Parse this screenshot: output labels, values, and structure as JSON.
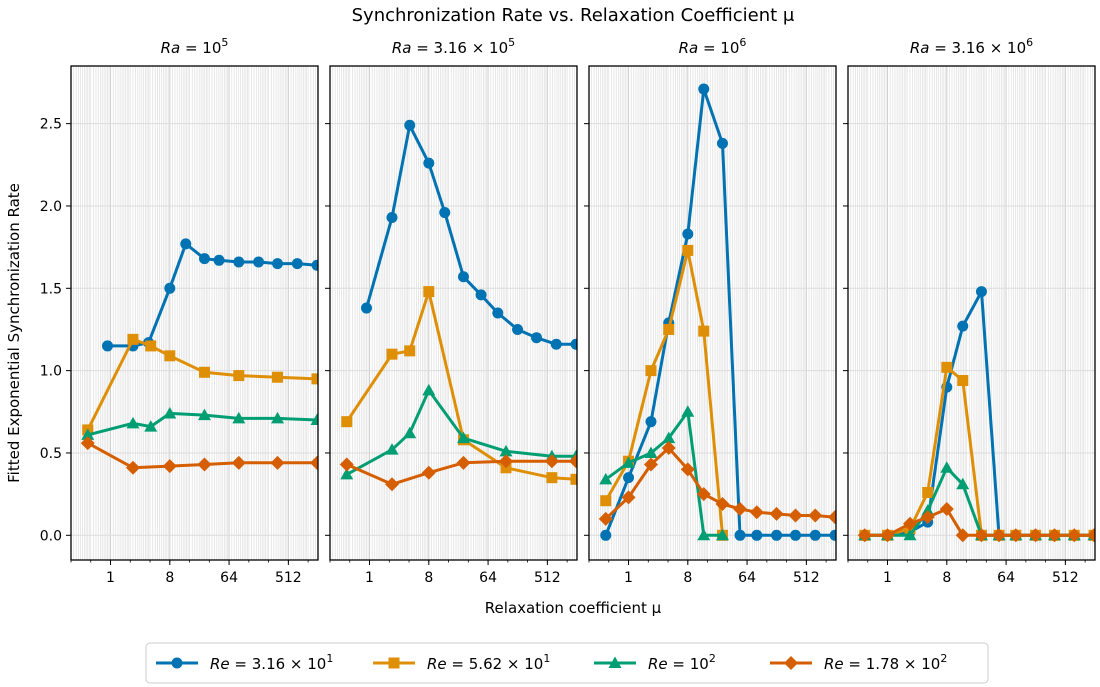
{
  "figure": {
    "suptitle": "Synchronization Rate vs. Relaxation Coefficient μ",
    "xlabel": "Relaxation coefficient μ",
    "ylabel": "Fitted Exponential Synchronization Rate"
  },
  "chart_data": {
    "type": "line",
    "x_scale": "log2",
    "xlim": [
      0.25,
      1448
    ],
    "ylim": [
      -0.15,
      2.85
    ],
    "grid": true,
    "legend_placement": "bottom-center",
    "shared_y": true,
    "x_ticks": [
      1,
      8,
      64,
      512
    ],
    "x_tick_labels": [
      "1",
      "8",
      "64",
      "512"
    ],
    "y_ticks": [
      0.0,
      0.5,
      1.0,
      1.5,
      2.0,
      2.5
    ],
    "y_tick_labels": [
      "0.0",
      "0.5",
      "1.0",
      "1.5",
      "2.0",
      "2.5"
    ],
    "series_styles": [
      {
        "color": "#0173b2",
        "marker": "circle",
        "legend": {
          "lhs": "Re",
          "rhs": "3.16 × 10",
          "sup": "1"
        }
      },
      {
        "color": "#de8f05",
        "marker": "square",
        "legend": {
          "lhs": "Re",
          "rhs": "5.62 × 10",
          "sup": "1"
        }
      },
      {
        "color": "#029e73",
        "marker": "triangle",
        "legend": {
          "lhs": "Re",
          "rhs": "10",
          "sup": "2"
        }
      },
      {
        "color": "#d55e00",
        "marker": "diamond",
        "legend": {
          "lhs": "Re",
          "rhs": "1.78 × 10",
          "sup": "2"
        }
      }
    ],
    "panels": [
      {
        "title": {
          "lhs": "Ra",
          "rhs": "10",
          "sup": "5"
        },
        "series": [
          {
            "x": [
              0.9,
              2.2,
              3.8,
              8,
              14,
              27,
              45,
              90,
              180,
              350,
              700,
              1400
            ],
            "y": [
              1.15,
              1.15,
              1.17,
              1.5,
              1.77,
              1.68,
              1.67,
              1.66,
              1.66,
              1.65,
              1.65,
              1.64
            ]
          },
          {
            "x": [
              0.45,
              2.2,
              4.1,
              8,
              27,
              90,
              350,
              1400
            ],
            "y": [
              0.64,
              1.19,
              1.15,
              1.09,
              0.99,
              0.97,
              0.96,
              0.95
            ]
          },
          {
            "x": [
              0.45,
              2.2,
              4.1,
              8,
              27,
              90,
              350,
              1400
            ],
            "y": [
              0.61,
              0.68,
              0.66,
              0.74,
              0.73,
              0.71,
              0.71,
              0.7
            ]
          },
          {
            "x": [
              0.45,
              2.2,
              8,
              27,
              90,
              350,
              1400
            ],
            "y": [
              0.56,
              0.41,
              0.42,
              0.43,
              0.44,
              0.44,
              0.44
            ]
          }
        ]
      },
      {
        "title": {
          "lhs": "Ra",
          "rhs": "3.16 × 10",
          "sup": "5"
        },
        "series": [
          {
            "x": [
              0.9,
              2.2,
              4.1,
              8,
              14,
              27,
              50,
              90,
              180,
              350,
              700,
              1400
            ],
            "y": [
              1.38,
              1.93,
              2.49,
              2.26,
              1.96,
              1.57,
              1.46,
              1.35,
              1.25,
              1.2,
              1.16,
              1.16
            ]
          },
          {
            "x": [
              0.45,
              2.2,
              4.1,
              8,
              27,
              120,
              600,
              1400
            ],
            "y": [
              0.69,
              1.1,
              1.12,
              1.48,
              0.58,
              0.41,
              0.35,
              0.34
            ]
          },
          {
            "x": [
              0.45,
              2.2,
              4.1,
              8,
              27,
              120,
              600,
              1400
            ],
            "y": [
              0.37,
              0.52,
              0.62,
              0.88,
              0.59,
              0.51,
              0.48,
              0.48
            ]
          },
          {
            "x": [
              0.45,
              2.2,
              8,
              27,
              120,
              600,
              1400
            ],
            "y": [
              0.43,
              0.31,
              0.38,
              0.44,
              0.45,
              0.45,
              0.45
            ]
          }
        ]
      },
      {
        "title": {
          "lhs": "Ra",
          "rhs": "10",
          "sup": "6"
        },
        "series": [
          {
            "x": [
              0.45,
              1,
              2.2,
              4.1,
              8,
              14,
              27,
              50,
              90,
              180,
              350,
              700,
              1400
            ],
            "y": [
              0.0,
              0.35,
              0.69,
              1.29,
              1.83,
              2.71,
              2.38,
              0.0,
              0.0,
              0.0,
              0.0,
              0.0,
              0.0
            ]
          },
          {
            "x": [
              0.45,
              1,
              2.2,
              4.1,
              8,
              14,
              27
            ],
            "y": [
              0.21,
              0.45,
              1.0,
              1.25,
              1.73,
              1.24,
              0.0
            ]
          },
          {
            "x": [
              0.45,
              1,
              2.2,
              4.1,
              8,
              14,
              27
            ],
            "y": [
              0.34,
              0.44,
              0.5,
              0.59,
              0.75,
              0.0,
              0.0
            ]
          },
          {
            "x": [
              0.45,
              1,
              2.2,
              4.1,
              8,
              14,
              27,
              50,
              90,
              180,
              350,
              700,
              1400
            ],
            "y": [
              0.1,
              0.23,
              0.43,
              0.53,
              0.4,
              0.25,
              0.19,
              0.16,
              0.14,
              0.13,
              0.12,
              0.12,
              0.11
            ]
          }
        ]
      },
      {
        "title": {
          "lhs": "Ra",
          "rhs": "3.16 × 10",
          "sup": "6"
        },
        "series": [
          {
            "x": [
              0.45,
              1,
              2.2,
              4.1,
              8,
              14,
              27,
              50,
              90,
              180,
              350,
              700,
              1400
            ],
            "y": [
              0.0,
              0.0,
              0.02,
              0.08,
              0.9,
              1.27,
              1.48,
              0.0,
              0.0,
              0.0,
              0.0,
              0.0,
              0.0
            ]
          },
          {
            "x": [
              0.45,
              1,
              2.2,
              4.1,
              8,
              14,
              27,
              50,
              90,
              180,
              350,
              700,
              1400
            ],
            "y": [
              0.0,
              0.0,
              0.04,
              0.26,
              1.02,
              0.94,
              0.0,
              0.0,
              0.0,
              0.0,
              0.0,
              0.0,
              0.0
            ]
          },
          {
            "x": [
              0.45,
              1,
              2.2,
              4.1,
              8,
              14,
              27,
              50,
              90,
              180,
              350,
              700,
              1400
            ],
            "y": [
              0.0,
              0.0,
              0.0,
              0.15,
              0.41,
              0.31,
              0.0,
              0.0,
              0.0,
              0.0,
              0.0,
              0.0,
              0.0
            ]
          },
          {
            "x": [
              0.45,
              1,
              2.2,
              4.1,
              8,
              14,
              27,
              50,
              90,
              180,
              350,
              700,
              1400
            ],
            "y": [
              0.0,
              0.0,
              0.07,
              0.11,
              0.16,
              0.0,
              0.0,
              0.0,
              0.0,
              0.0,
              0.0,
              0.0,
              0.0
            ]
          }
        ]
      }
    ]
  }
}
